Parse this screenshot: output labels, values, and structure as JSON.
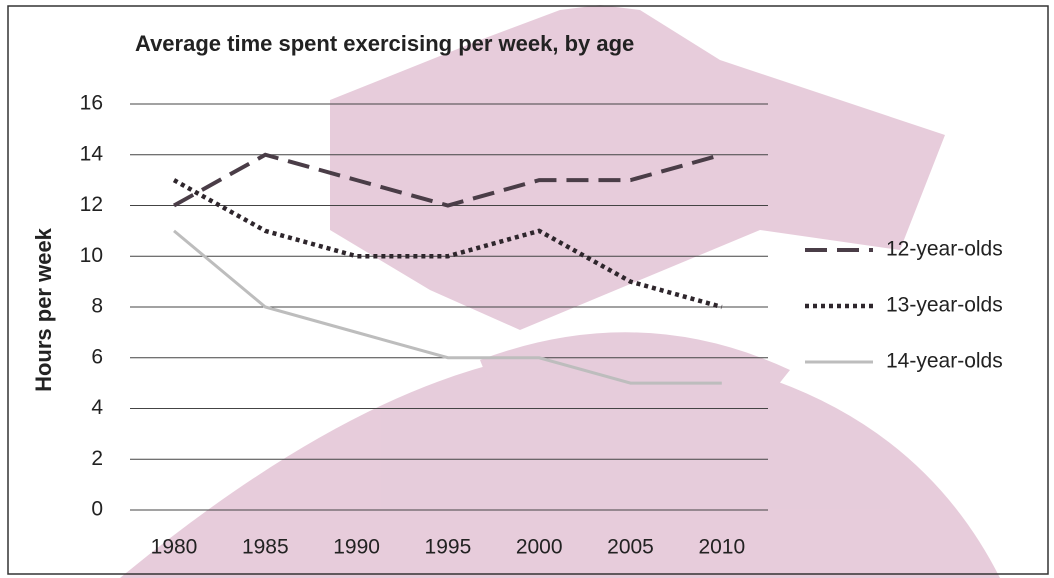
{
  "chart_data": {
    "type": "line",
    "title": "Average time spent exercising per week, by age",
    "y_label": "Hours per week",
    "categories": [
      "1980",
      "1985",
      "1990",
      "1995",
      "2000",
      "2005",
      "2010"
    ],
    "series": [
      {
        "name": "12-year-olds",
        "color": "#4a3d47",
        "style": "dashed",
        "values": [
          12,
          14,
          13,
          12,
          13,
          13,
          14
        ]
      },
      {
        "name": "13-year-olds",
        "color": "#2e262c",
        "style": "dotted",
        "values": [
          13,
          11,
          10,
          10,
          11,
          9,
          8
        ]
      },
      {
        "name": "14-year-olds",
        "color": "#bdbdbd",
        "style": "solid",
        "values": [
          11,
          8,
          7,
          6,
          6,
          5,
          5
        ]
      }
    ],
    "ylim": [
      0,
      16
    ],
    "yticks": [
      0,
      2,
      4,
      6,
      8,
      10,
      12,
      14,
      16
    ],
    "grid": true,
    "legend": "right"
  }
}
